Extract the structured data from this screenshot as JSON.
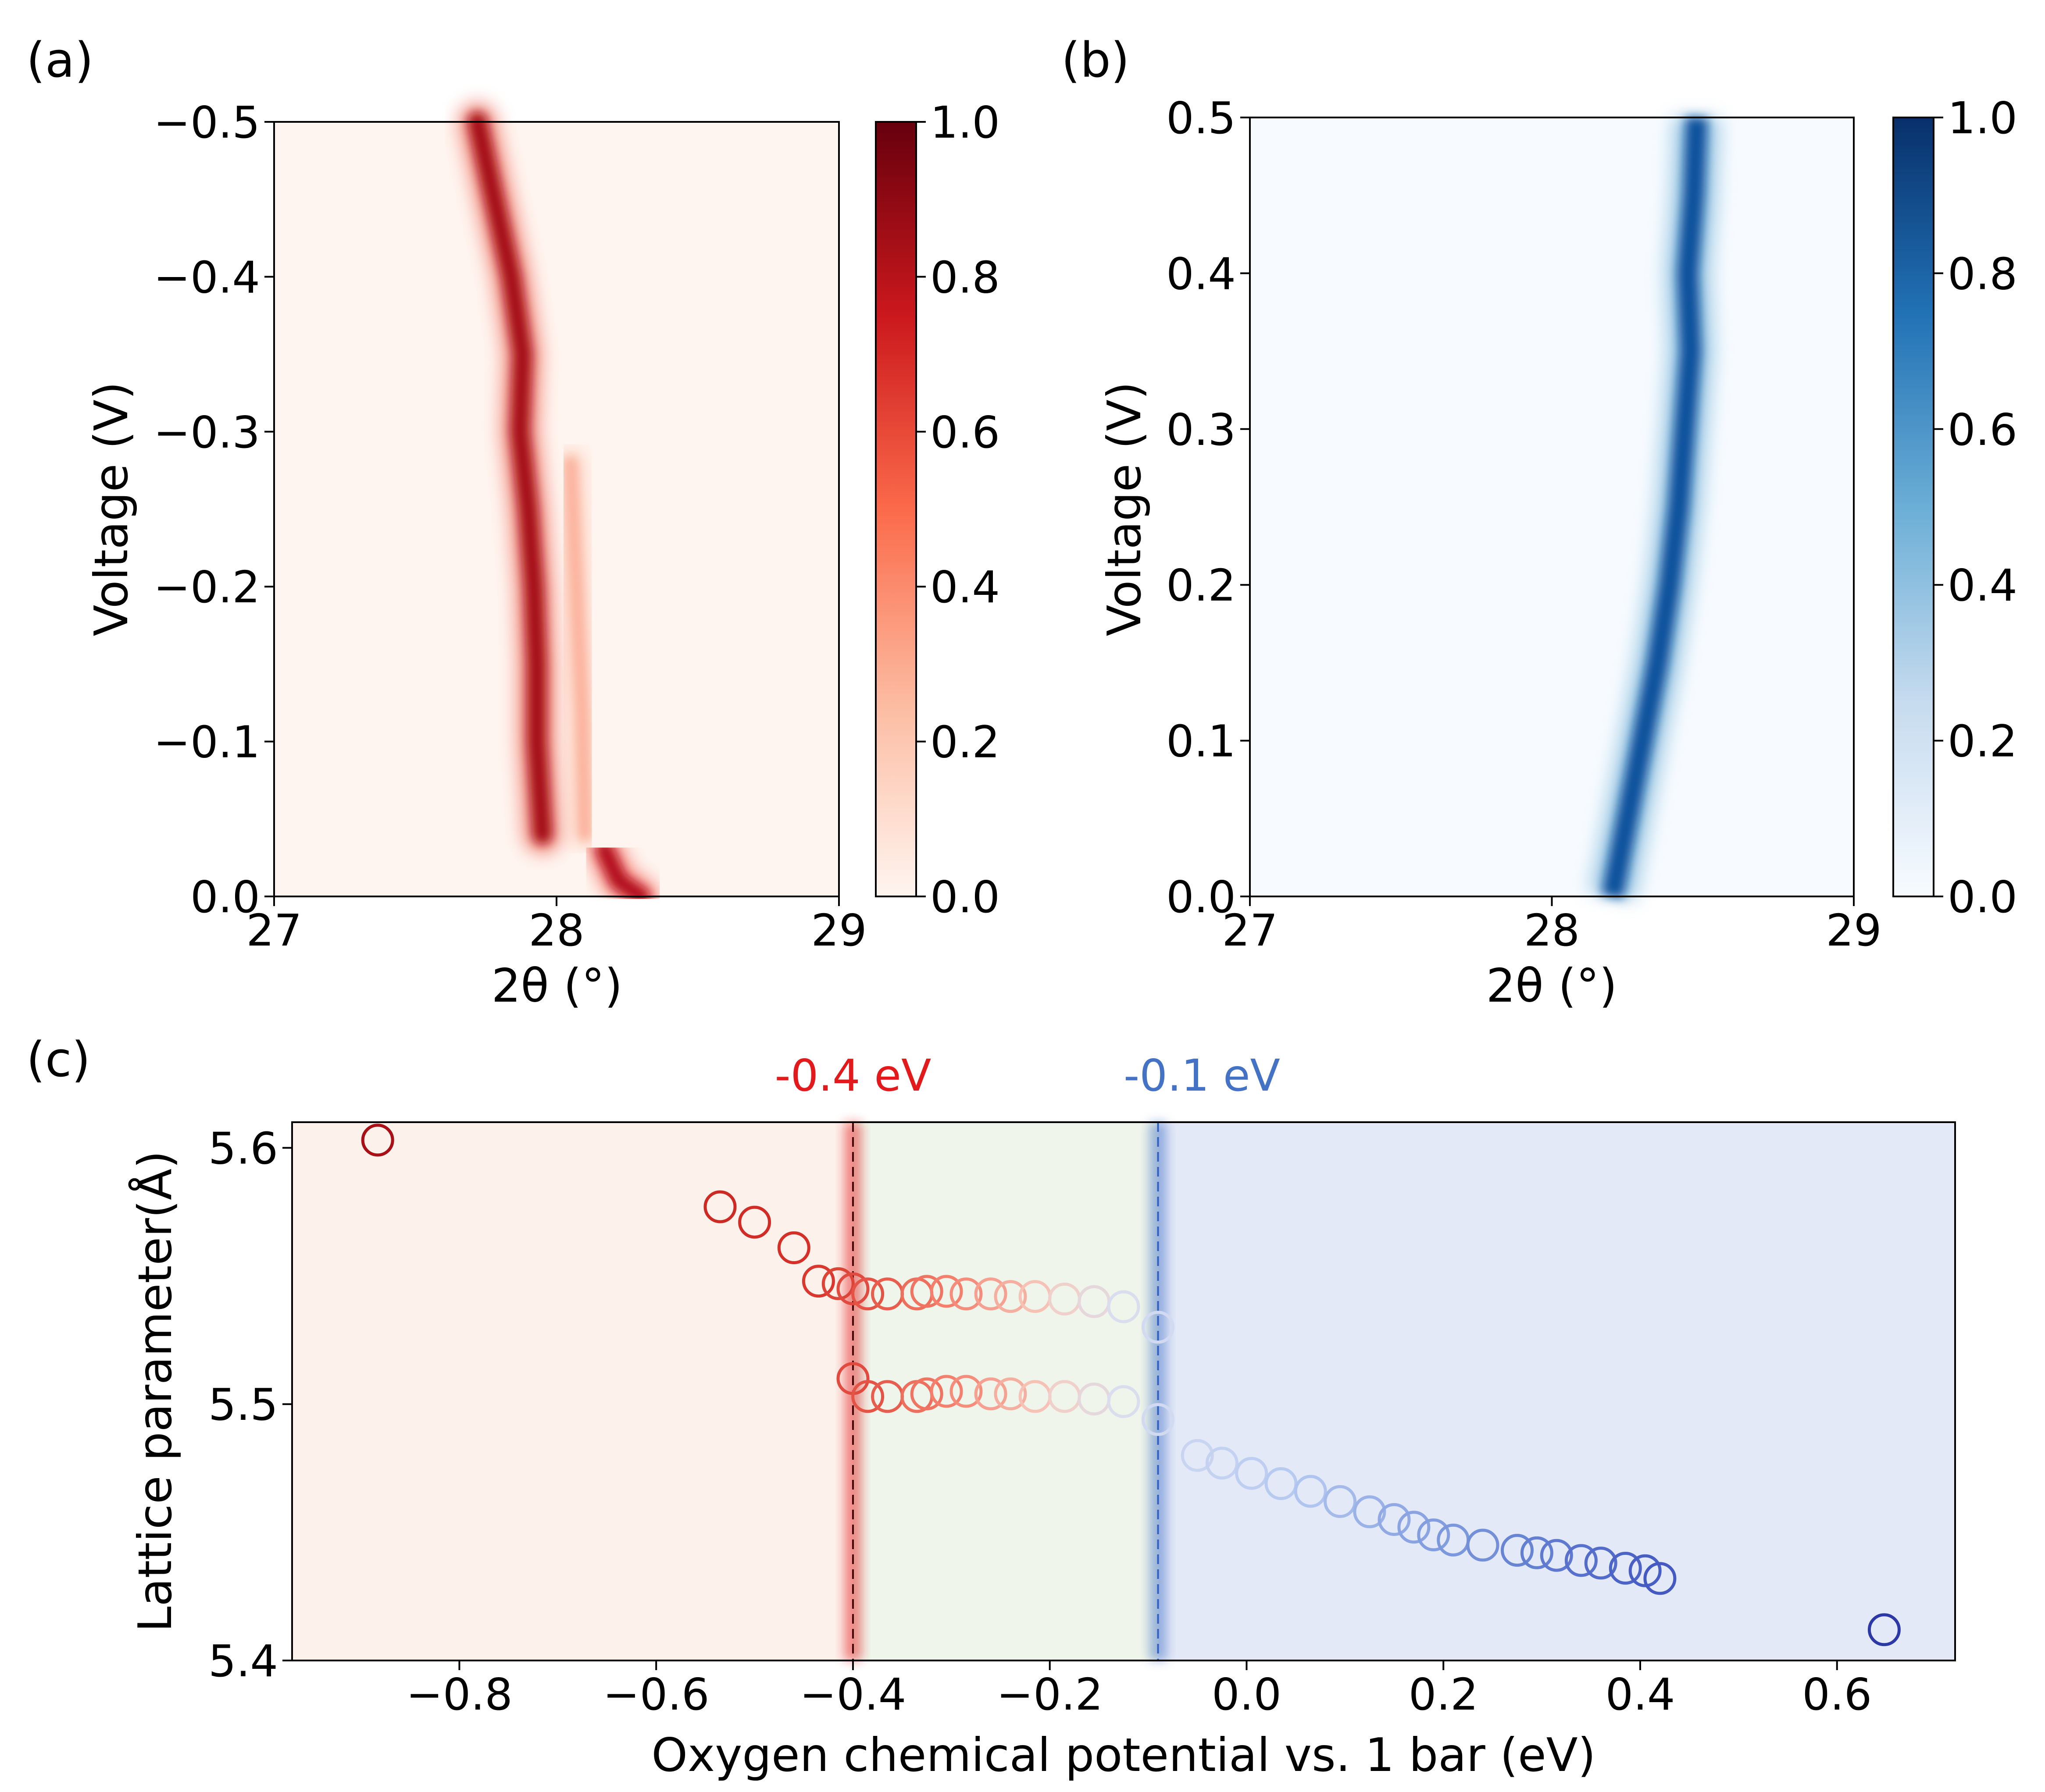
{
  "panels": {
    "a": {
      "letter": "(a)",
      "xlabel": "2θ (°)",
      "ylabel": "Voltage (V)",
      "x_ticks": [
        "27",
        "28",
        "29"
      ],
      "y_ticks": [
        "−0.5",
        "−0.4",
        "−0.3",
        "−0.2",
        "−0.1",
        "0.0"
      ],
      "cbar_ticks": [
        "0.0",
        "0.2",
        "0.4",
        "0.6",
        "0.8",
        "1.0"
      ],
      "cmap": "Reds",
      "cmap_colors": [
        "#fff5f0",
        "#fcbba1",
        "#fb6a4a",
        "#cb181d",
        "#67000d"
      ]
    },
    "b": {
      "letter": "(b)",
      "xlabel": "2θ (°)",
      "ylabel": "Voltage (V)",
      "x_ticks": [
        "27",
        "28",
        "29"
      ],
      "y_ticks": [
        "0.5",
        "0.4",
        "0.3",
        "0.2",
        "0.1",
        "0.0"
      ],
      "cbar_ticks": [
        "0.0",
        "0.2",
        "0.4",
        "0.6",
        "0.8",
        "1.0"
      ],
      "cmap": "Blues",
      "cmap_colors": [
        "#f7fbff",
        "#c6dbef",
        "#6baed6",
        "#2171b5",
        "#08306b"
      ]
    },
    "c": {
      "letter": "(c)",
      "threshold_red_label": "-0.4 eV",
      "threshold_blue_label": "-0.1 eV",
      "threshold_red_color": "#e31a1c",
      "threshold_blue_color": "#4472c4",
      "region_colors": [
        "#fdf1ec",
        "#eff5ea",
        "#e4e9f8"
      ]
    }
  },
  "chart_data": [
    {
      "type": "heatmap",
      "panel": "a",
      "title": "",
      "xlabel": "2θ (°)",
      "ylabel": "Voltage (V)",
      "xlim": [
        27,
        29
      ],
      "ylim": [
        0.0,
        -0.5
      ],
      "colorbar": {
        "min": 0.0,
        "max": 1.0,
        "cmap": "Reds"
      },
      "peak_tracks": [
        {
          "name": "main peak",
          "points": [
            [
              27.72,
              -0.5
            ],
            [
              27.78,
              -0.45
            ],
            [
              27.84,
              -0.4
            ],
            [
              27.88,
              -0.35
            ],
            [
              27.87,
              -0.3
            ],
            [
              27.9,
              -0.25
            ],
            [
              27.92,
              -0.2
            ],
            [
              27.93,
              -0.15
            ],
            [
              27.93,
              -0.1
            ],
            [
              27.95,
              -0.04
            ]
          ]
        },
        {
          "name": "shoulder",
          "points": [
            [
              28.05,
              -0.28
            ],
            [
              28.07,
              -0.2
            ],
            [
              28.09,
              -0.12
            ],
            [
              28.1,
              -0.04
            ]
          ]
        },
        {
          "name": "initial peak",
          "points": [
            [
              28.17,
              -0.03
            ],
            [
              28.22,
              -0.01
            ],
            [
              28.3,
              0.0
            ]
          ]
        }
      ]
    },
    {
      "type": "heatmap",
      "panel": "b",
      "title": "",
      "xlabel": "2θ (°)",
      "ylabel": "Voltage (V)",
      "xlim": [
        27,
        29
      ],
      "ylim": [
        0.0,
        0.5
      ],
      "colorbar": {
        "min": 0.0,
        "max": 1.0,
        "cmap": "Blues"
      },
      "peak_tracks": [
        {
          "name": "main peak",
          "points": [
            [
              28.2,
              0.0
            ],
            [
              28.25,
              0.05
            ],
            [
              28.3,
              0.1
            ],
            [
              28.35,
              0.15
            ],
            [
              28.39,
              0.2
            ],
            [
              28.42,
              0.25
            ],
            [
              28.44,
              0.3
            ],
            [
              28.46,
              0.35
            ],
            [
              28.45,
              0.4
            ],
            [
              28.47,
              0.45
            ],
            [
              28.48,
              0.5
            ]
          ]
        }
      ]
    },
    {
      "type": "scatter",
      "panel": "c",
      "title": "",
      "xlabel": "Oxygen chemical potential vs. 1 bar (eV)",
      "ylabel": "Lattice parameter(Å)",
      "xlim": [
        -0.97,
        0.72
      ],
      "ylim": [
        5.4,
        5.61
      ],
      "x_ticks": [
        "−0.8",
        "−0.6",
        "−0.4",
        "−0.2",
        "0.0",
        "0.2",
        "0.4",
        "0.6"
      ],
      "y_ticks": [
        "5.4",
        "5.5",
        "5.6"
      ],
      "vlines": [
        -0.4,
        -0.09
      ],
      "series": [
        {
          "name": "upper branch",
          "x": [
            -0.883,
            -0.535,
            -0.5,
            -0.46,
            -0.435,
            -0.415,
            -0.4,
            -0.385,
            -0.365,
            -0.335,
            -0.325,
            -0.305,
            -0.285,
            -0.26,
            -0.24,
            -0.215,
            -0.185,
            -0.155,
            -0.125,
            -0.09
          ],
          "y": [
            5.603,
            5.577,
            5.571,
            5.561,
            5.548,
            5.547,
            5.545,
            5.543,
            5.543,
            5.543,
            5.544,
            5.544,
            5.543,
            5.543,
            5.542,
            5.542,
            5.541,
            5.54,
            5.538,
            5.53
          ]
        },
        {
          "name": "lower branch",
          "x": [
            -0.4,
            -0.385,
            -0.365,
            -0.335,
            -0.325,
            -0.305,
            -0.285,
            -0.26,
            -0.24,
            -0.215,
            -0.185,
            -0.155,
            -0.125,
            -0.09
          ],
          "y": [
            5.51,
            5.503,
            5.503,
            5.503,
            5.504,
            5.505,
            5.505,
            5.504,
            5.504,
            5.503,
            5.503,
            5.502,
            5.501,
            5.494
          ]
        },
        {
          "name": "single phase",
          "x": [
            -0.05,
            -0.025,
            0.005,
            0.035,
            0.065,
            0.095,
            0.125,
            0.15,
            0.17,
            0.19,
            0.21,
            0.24,
            0.275,
            0.295,
            0.315,
            0.34,
            0.36,
            0.385,
            0.405,
            0.42,
            0.648
          ],
          "y": [
            5.48,
            5.477,
            5.473,
            5.469,
            5.466,
            5.462,
            5.458,
            5.455,
            5.452,
            5.449,
            5.447,
            5.445,
            5.443,
            5.442,
            5.441,
            5.439,
            5.438,
            5.436,
            5.435,
            5.432,
            5.412
          ]
        }
      ]
    }
  ]
}
